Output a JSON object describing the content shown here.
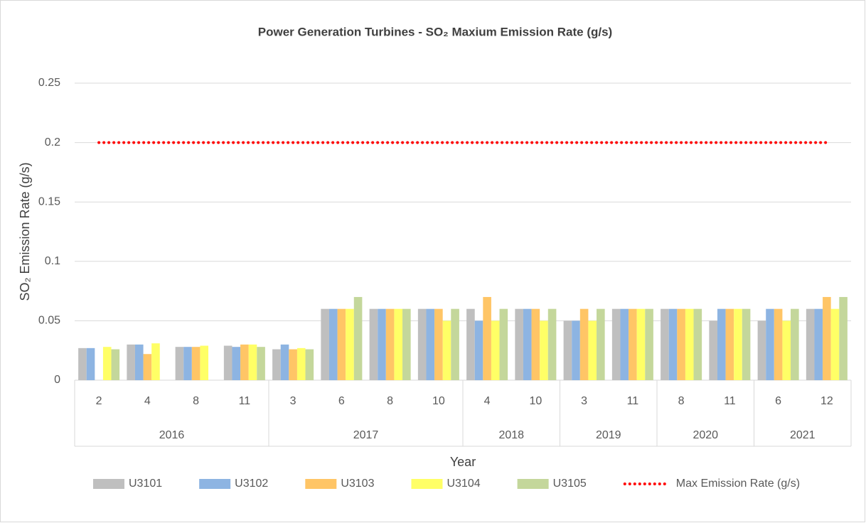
{
  "chart_data": {
    "type": "bar",
    "title": "Power Generation Turbines - SO₂ Maxium Emission Rate (g/s)",
    "xlabel": "Year",
    "ylabel": "SO₂ Emission Rate (g/s)",
    "category_groups": [
      {
        "name": "2016",
        "categories": [
          "2",
          "4",
          "8",
          "11"
        ]
      },
      {
        "name": "2017",
        "categories": [
          "3",
          "6",
          "8",
          "10"
        ]
      },
      {
        "name": "2018",
        "categories": [
          "4",
          "10"
        ]
      },
      {
        "name": "2019",
        "categories": [
          "3",
          "11"
        ]
      },
      {
        "name": "2020",
        "categories": [
          "8",
          "11"
        ]
      },
      {
        "name": "2021",
        "categories": [
          "6",
          "12"
        ]
      }
    ],
    "series": [
      {
        "name": "U3101",
        "color": "#bfbfbf",
        "values": [
          0.027,
          0.03,
          0.028,
          0.029,
          0.026,
          0.06,
          0.06,
          0.06,
          0.06,
          0.06,
          0.05,
          0.06,
          0.06,
          0.05,
          0.05,
          0.06
        ]
      },
      {
        "name": "U3102",
        "color": "#8db4e2",
        "values": [
          0.027,
          0.03,
          0.028,
          0.028,
          0.03,
          0.06,
          0.06,
          0.06,
          0.05,
          0.06,
          0.05,
          0.06,
          0.06,
          0.06,
          0.06,
          0.06
        ]
      },
      {
        "name": "U3103",
        "color": "#ffc566",
        "values": [
          null,
          0.022,
          0.028,
          0.03,
          0.026,
          0.06,
          0.06,
          0.06,
          0.07,
          0.06,
          0.06,
          0.06,
          0.06,
          0.06,
          0.06,
          0.07
        ]
      },
      {
        "name": "U3104",
        "color": "#ffff66",
        "values": [
          0.028,
          0.031,
          0.029,
          0.03,
          0.027,
          0.06,
          0.06,
          0.05,
          0.05,
          0.05,
          0.05,
          0.06,
          0.06,
          0.06,
          0.05,
          0.06
        ]
      },
      {
        "name": "U3105",
        "color": "#c4d79b",
        "values": [
          0.026,
          null,
          null,
          0.028,
          0.026,
          0.07,
          0.06,
          0.06,
          0.06,
          0.06,
          0.06,
          0.06,
          0.06,
          0.06,
          0.06,
          0.07
        ]
      },
      {
        "name": "Max Emission Rate (g/s)",
        "color": "#ff0000",
        "type": "line",
        "values": [
          0.2,
          0.2,
          0.2,
          0.2,
          0.2,
          0.2,
          0.2,
          0.2,
          0.2,
          0.2,
          0.2,
          0.2,
          0.2,
          0.2,
          0.2,
          0.2
        ]
      }
    ],
    "ylim": [
      0,
      0.25
    ],
    "yticks": [
      0,
      0.05,
      0.1,
      0.15,
      0.2,
      0.25
    ],
    "grid": true,
    "legend": "bottom"
  }
}
